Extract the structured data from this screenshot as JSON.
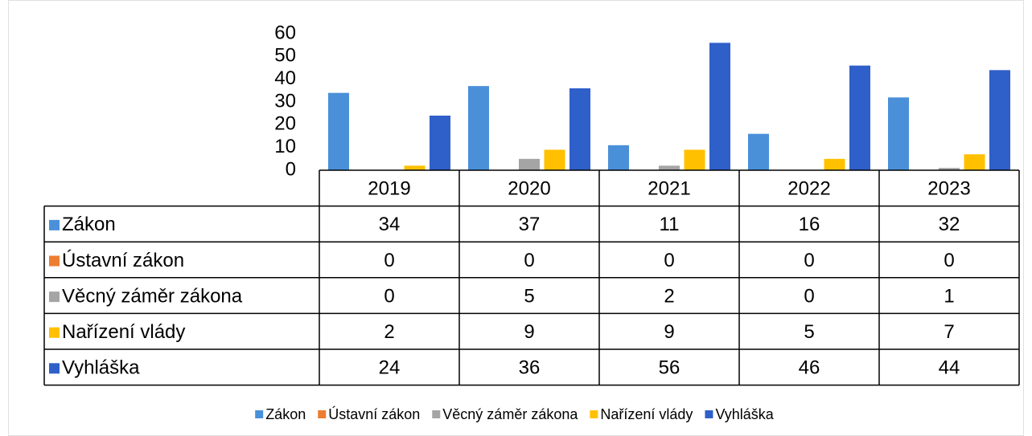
{
  "chart_data": {
    "type": "bar",
    "categories": [
      "2019",
      "2020",
      "2021",
      "2022",
      "2023"
    ],
    "series": [
      {
        "name": "Zákon",
        "color": "#4a90d9",
        "values": [
          34,
          37,
          11,
          16,
          32
        ]
      },
      {
        "name": "Ústavní zákon",
        "color": "#ed7d31",
        "values": [
          0,
          0,
          0,
          0,
          0
        ]
      },
      {
        "name": "Věcný záměr zákona",
        "color": "#a5a5a5",
        "values": [
          0,
          5,
          2,
          0,
          1
        ]
      },
      {
        "name": "Nařízení vlády",
        "color": "#ffc000",
        "values": [
          2,
          9,
          9,
          5,
          7
        ]
      },
      {
        "name": "Vyhláška",
        "color": "#2f5fc9",
        "values": [
          24,
          36,
          56,
          46,
          44
        ]
      }
    ],
    "ylim": [
      0,
      60
    ],
    "yticks": [
      0,
      10,
      20,
      30,
      40,
      50,
      60
    ],
    "grid": false
  }
}
